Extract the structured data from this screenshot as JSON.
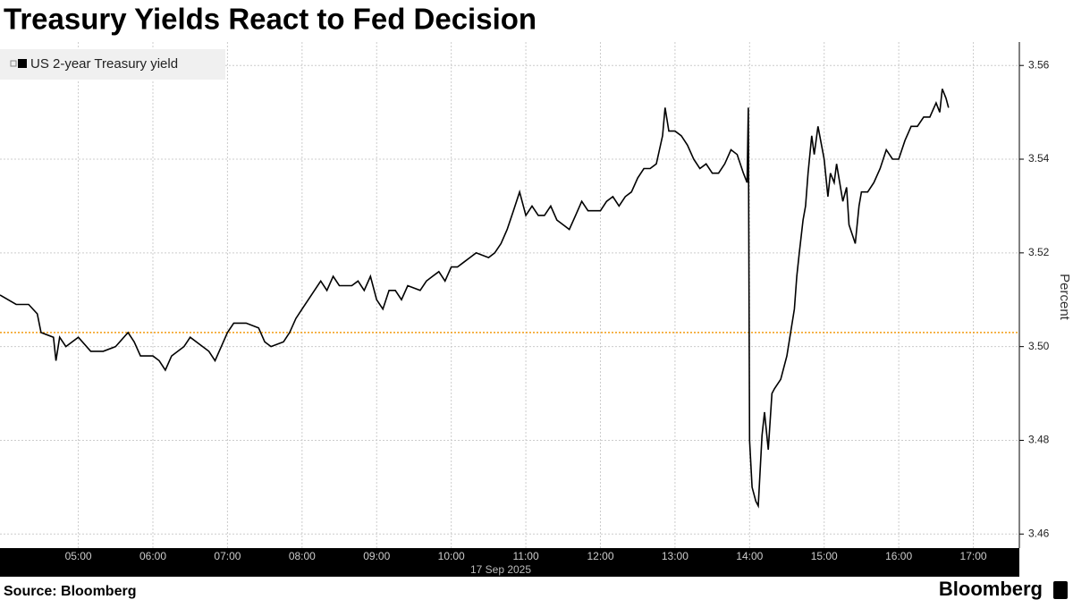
{
  "chart_data": {
    "type": "line",
    "title": "Treasury Yields React to Fed Decision",
    "y_label": "Percent",
    "x_date_label": "17 Sep 2025",
    "source": "Source: Bloomberg",
    "brand": "Bloomberg",
    "xlim": [
      "03:57",
      "17:37"
    ],
    "xticks": [
      "05:00",
      "06:00",
      "07:00",
      "08:00",
      "09:00",
      "10:00",
      "11:00",
      "12:00",
      "13:00",
      "14:00",
      "15:00",
      "16:00",
      "17:00"
    ],
    "ylim": [
      3.457,
      3.565
    ],
    "yticks": [
      3.46,
      3.48,
      {
        "value": 3.5,
        "label": "3.50"
      },
      3.52,
      3.54,
      3.56
    ],
    "grid": true,
    "reference_line": 3.503,
    "reference_color": "#f39c12",
    "legend_position": "top-left",
    "x": [
      "03:57",
      "04:10",
      "04:20",
      "04:27",
      "04:30",
      "04:40",
      "04:42",
      "04:45",
      "04:50",
      "05:00",
      "05:10",
      "05:20",
      "05:30",
      "05:40",
      "05:45",
      "05:50",
      "06:00",
      "06:05",
      "06:10",
      "06:15",
      "06:25",
      "06:30",
      "06:40",
      "06:45",
      "06:50",
      "06:55",
      "07:00",
      "07:05",
      "07:15",
      "07:25",
      "07:30",
      "07:35",
      "07:45",
      "07:50",
      "07:55",
      "08:00",
      "08:05",
      "08:10",
      "08:15",
      "08:20",
      "08:25",
      "08:30",
      "08:40",
      "08:45",
      "08:50",
      "08:55",
      "09:00",
      "09:05",
      "09:10",
      "09:15",
      "09:20",
      "09:25",
      "09:35",
      "09:40",
      "09:45",
      "09:50",
      "09:55",
      "10:00",
      "10:05",
      "10:10",
      "10:15",
      "10:20",
      "10:30",
      "10:35",
      "10:40",
      "10:45",
      "10:50",
      "10:55",
      "11:00",
      "11:05",
      "11:10",
      "11:15",
      "11:20",
      "11:25",
      "11:30",
      "11:35",
      "11:40",
      "11:45",
      "11:50",
      "12:00",
      "12:05",
      "12:10",
      "12:15",
      "12:20",
      "12:25",
      "12:30",
      "12:35",
      "12:40",
      "12:45",
      "12:50",
      "12:52",
      "12:55",
      "13:00",
      "13:05",
      "13:10",
      "13:15",
      "13:20",
      "13:25",
      "13:30",
      "13:35",
      "13:40",
      "13:45",
      "13:50",
      "13:55",
      "13:58",
      "13:59",
      "14:00",
      "14:02",
      "14:05",
      "14:07",
      "14:10",
      "14:12",
      "14:15",
      "14:18",
      "14:20",
      "14:25",
      "14:30",
      "14:33",
      "14:36",
      "14:38",
      "14:40",
      "14:43",
      "14:45",
      "14:47",
      "14:50",
      "14:52",
      "14:55",
      "15:00",
      "15:03",
      "15:05",
      "15:08",
      "15:10",
      "15:15",
      "15:18",
      "15:20",
      "15:25",
      "15:28",
      "15:30",
      "15:35",
      "15:40",
      "15:45",
      "15:50",
      "15:55",
      "16:00",
      "16:05",
      "16:10",
      "16:15",
      "16:20",
      "16:25",
      "16:30",
      "16:33",
      "16:35",
      "16:38",
      "16:40"
    ],
    "series": [
      {
        "name": "US 2-year Treasury yield",
        "color": "#000000",
        "values": [
          3.511,
          3.509,
          3.509,
          3.507,
          3.503,
          3.502,
          3.497,
          3.502,
          3.5,
          3.502,
          3.499,
          3.499,
          3.5,
          3.503,
          3.501,
          3.498,
          3.498,
          3.497,
          3.495,
          3.498,
          3.5,
          3.502,
          3.5,
          3.499,
          3.497,
          3.5,
          3.503,
          3.505,
          3.505,
          3.504,
          3.501,
          3.5,
          3.501,
          3.503,
          3.506,
          3.508,
          3.51,
          3.512,
          3.514,
          3.512,
          3.515,
          3.513,
          3.513,
          3.514,
          3.512,
          3.515,
          3.51,
          3.508,
          3.512,
          3.512,
          3.51,
          3.513,
          3.512,
          3.514,
          3.515,
          3.516,
          3.514,
          3.517,
          3.517,
          3.518,
          3.519,
          3.52,
          3.519,
          3.52,
          3.522,
          3.525,
          3.529,
          3.533,
          3.528,
          3.53,
          3.528,
          3.528,
          3.53,
          3.527,
          3.526,
          3.525,
          3.528,
          3.531,
          3.529,
          3.529,
          3.531,
          3.532,
          3.53,
          3.532,
          3.533,
          3.536,
          3.538,
          3.538,
          3.539,
          3.545,
          3.551,
          3.546,
          3.546,
          3.545,
          3.543,
          3.54,
          3.538,
          3.539,
          3.537,
          3.537,
          3.539,
          3.542,
          3.541,
          3.537,
          3.535,
          3.551,
          3.48,
          3.47,
          3.467,
          3.466,
          3.481,
          3.486,
          3.478,
          3.49,
          3.491,
          3.493,
          3.498,
          3.503,
          3.508,
          3.515,
          3.52,
          3.527,
          3.53,
          3.537,
          3.545,
          3.541,
          3.547,
          3.54,
          3.532,
          3.537,
          3.535,
          3.539,
          3.531,
          3.534,
          3.526,
          3.522,
          3.53,
          3.533,
          3.533,
          3.535,
          3.538,
          3.542,
          3.54,
          3.54,
          3.544,
          3.547,
          3.547,
          3.549,
          3.549,
          3.552,
          3.55,
          3.555,
          3.553,
          3.551
        ]
      }
    ]
  }
}
